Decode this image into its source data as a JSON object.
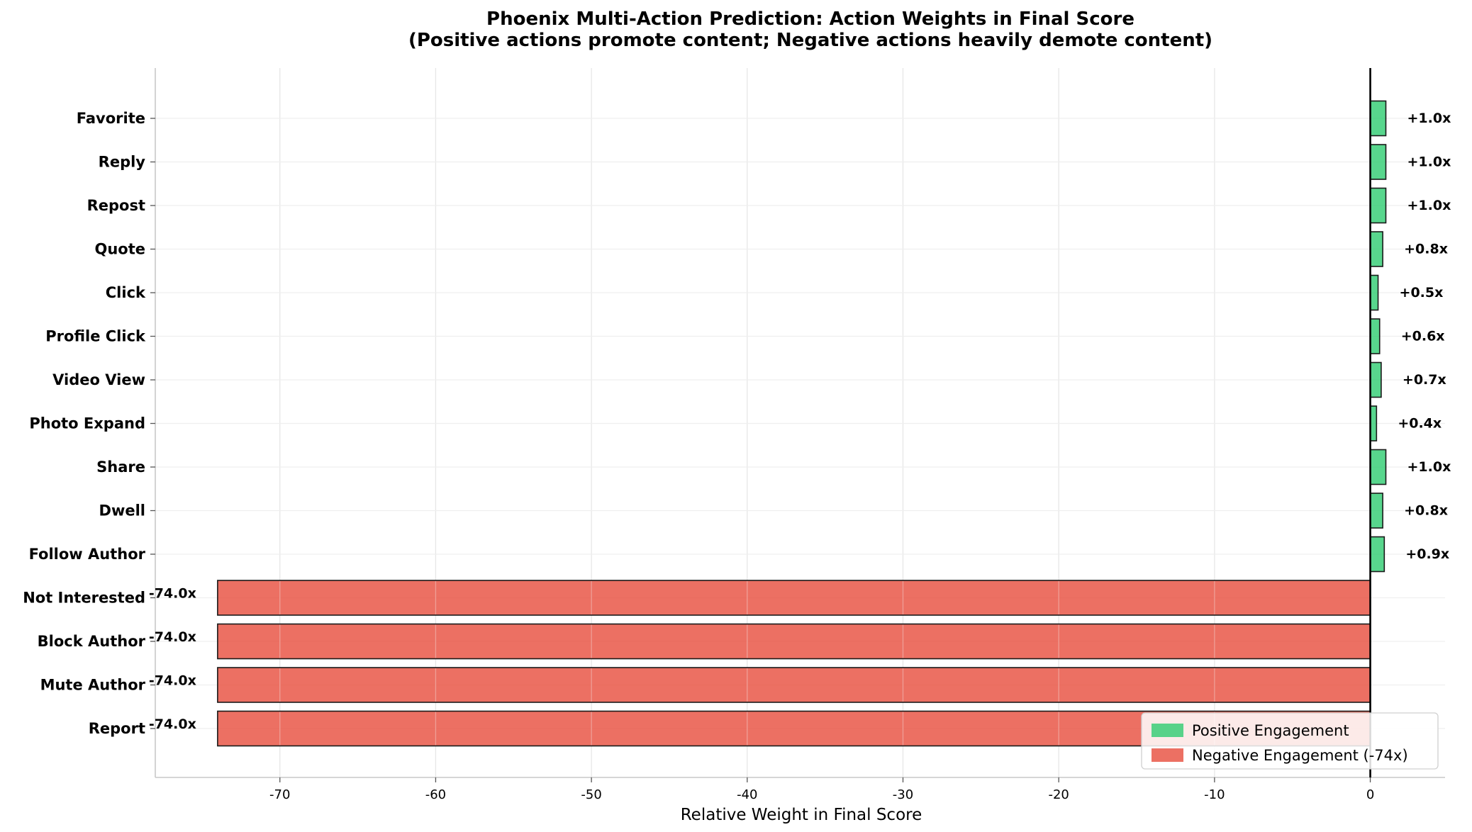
{
  "chart_data": {
    "type": "bar",
    "orientation": "horizontal",
    "title_line1": "Phoenix Multi-Action Prediction: Action Weights in Final Score",
    "title_line2": "(Positive actions promote content; Negative actions heavily demote content)",
    "xlabel": "Relative Weight in Final Score",
    "ylabel": "",
    "xlim": [
      -78,
      4.8
    ],
    "xticks": [
      -70,
      -60,
      -50,
      -40,
      -30,
      -20,
      -10,
      0
    ],
    "grid": true,
    "legend_position": "lower-right",
    "categories": [
      "Favorite",
      "Reply",
      "Repost",
      "Quote",
      "Click",
      "Profile Click",
      "Video View",
      "Photo Expand",
      "Share",
      "Dwell",
      "Follow Author",
      "Not Interested",
      "Block Author",
      "Mute Author",
      "Report"
    ],
    "values": [
      1.0,
      1.0,
      1.0,
      0.8,
      0.5,
      0.6,
      0.7,
      0.4,
      1.0,
      0.8,
      0.9,
      -74.0,
      -74.0,
      -74.0,
      -74.0
    ],
    "value_labels": [
      "+1.0x",
      "+1.0x",
      "+1.0x",
      "+0.8x",
      "+0.5x",
      "+0.6x",
      "+0.7x",
      "+0.4x",
      "+1.0x",
      "+0.8x",
      "+0.9x",
      "-74.0x",
      "-74.0x",
      "-74.0x",
      "-74.0x"
    ],
    "legend": [
      {
        "label": "Positive Engagement",
        "color": "#2ecc71"
      },
      {
        "label": "Negative Engagement (-74x)",
        "color": "#e74c3c"
      }
    ],
    "colors": {
      "positive": "#2ecc71",
      "negative": "#e74c3c"
    }
  }
}
